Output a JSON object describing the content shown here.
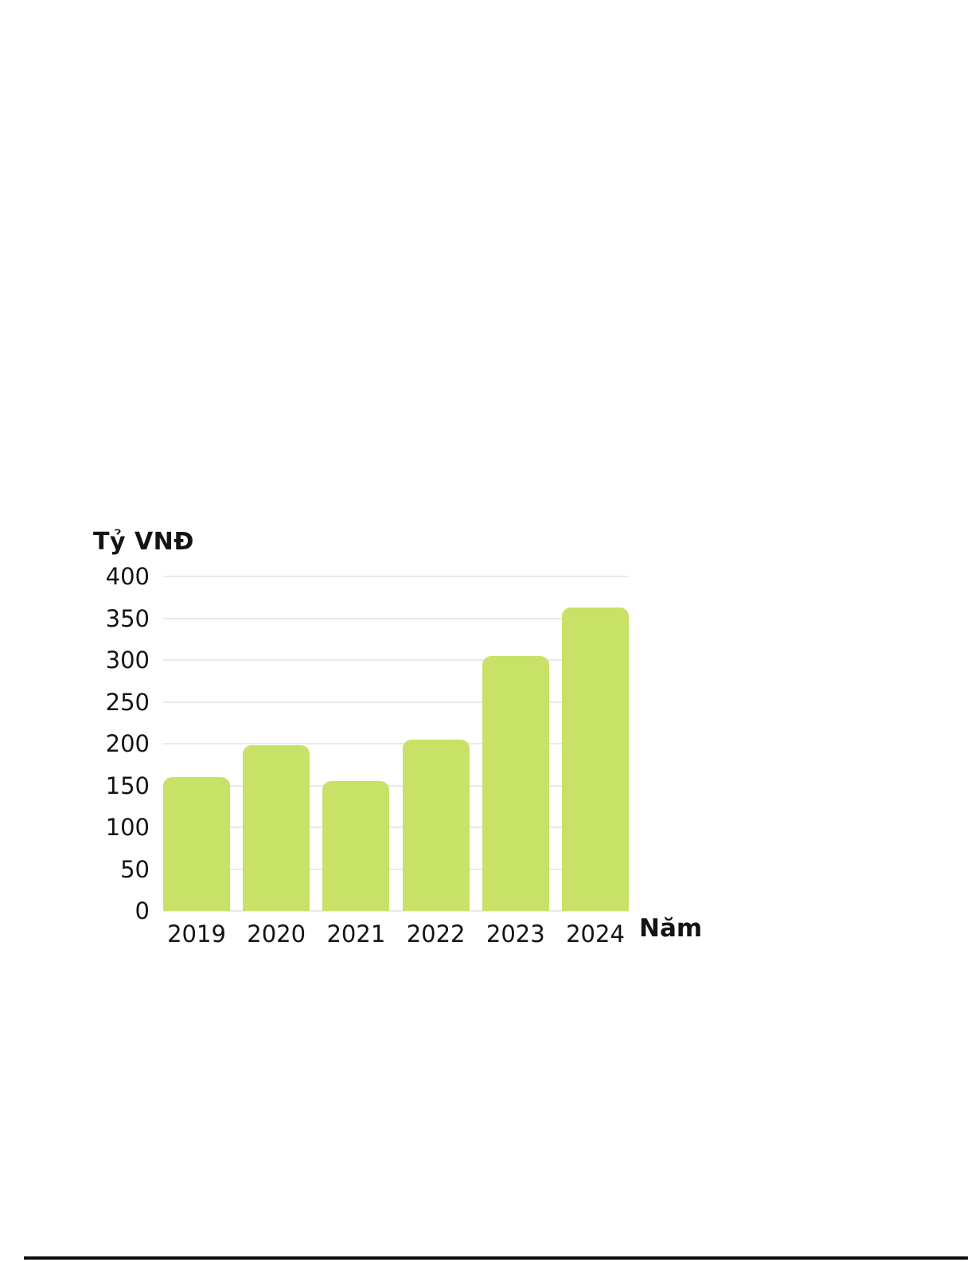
{
  "chart_data": {
    "type": "bar",
    "title": "",
    "ylabel": "Tỷ VNĐ",
    "xlabel": "Năm",
    "categories": [
      "2019",
      "2020",
      "2021",
      "2022",
      "2023",
      "2024"
    ],
    "values": [
      160,
      198,
      155,
      205,
      305,
      363
    ],
    "ylim": [
      0,
      400
    ],
    "yticks": [
      0,
      50,
      100,
      150,
      200,
      250,
      300,
      350,
      400
    ],
    "grid": true,
    "legend_position": "none",
    "bar_color": "#c8e167",
    "gridline_color": "#e9e9e9",
    "text_color": "#141414"
  },
  "page": {
    "background": "#ffffff",
    "bottom_rule_color": "#0b0b0b"
  }
}
